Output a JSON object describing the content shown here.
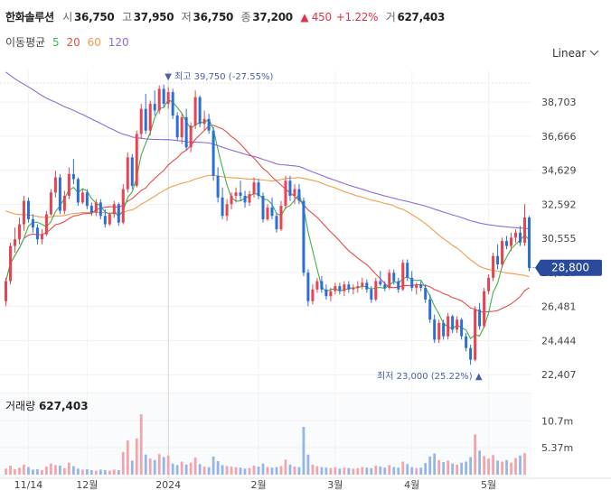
{
  "header": {
    "name": "한화솔루션",
    "open_label": "시",
    "open": "36,750",
    "high_label": "고",
    "high": "37,950",
    "low_label": "저",
    "low": "36,750",
    "close_label": "종",
    "close": "37,200",
    "change": "▲ 450",
    "change_pct": "+1.22%",
    "volume_label": "거",
    "volume": "627,403"
  },
  "moving_average": {
    "label": "이동평균",
    "items": [
      {
        "period": "5",
        "color": "#3cb44b"
      },
      {
        "period": "20",
        "color": "#e84a4a"
      },
      {
        "period": "60",
        "color": "#f39c4a"
      },
      {
        "period": "120",
        "color": "#8e6bdf"
      }
    ]
  },
  "scale_selector": {
    "value": "Linear"
  },
  "volume_panel": {
    "label": "거래량",
    "value": "627,403"
  },
  "colors": {
    "up": "#e8434f",
    "down": "#2a6fd6",
    "current": "#2a4b9b"
  },
  "chart_data": {
    "type": "candlestick",
    "y_ticks": [
      "38,703",
      "36,666",
      "34,629",
      "32,592",
      "30,555",
      "28,518",
      "26,481",
      "24,444",
      "22,407"
    ],
    "y_tick_values": [
      38703,
      36666,
      34629,
      32592,
      30555,
      28518,
      26481,
      24444,
      22407
    ],
    "x_ticks": [
      "11/14",
      "12월",
      "2024",
      "2월",
      "3월",
      "4월",
      "5월"
    ],
    "x_tick_index": [
      5,
      18,
      36,
      56,
      73,
      90,
      107
    ],
    "ylim": [
      21500,
      40600
    ],
    "current_price": {
      "value": 28800,
      "label": "28,800"
    },
    "max_marker": {
      "index": 36,
      "value": 39750,
      "label": "▼ 최고 39,750 (-27.55%)"
    },
    "min_marker": {
      "index": 105,
      "value": 23000,
      "label": "최저 23,000 (25.22%) ▲"
    },
    "volume_ticks": [
      "10.7m",
      "5.37m"
    ],
    "volume_tick_values": [
      10.7,
      5.37
    ],
    "volume_max": 14,
    "ohlc": [
      [
        26800,
        28200,
        26500,
        28000
      ],
      [
        28000,
        30300,
        27800,
        30100
      ],
      [
        30100,
        31200,
        29700,
        30500
      ],
      [
        30500,
        31800,
        30200,
        31400
      ],
      [
        31400,
        33100,
        31000,
        32800
      ],
      [
        32800,
        33000,
        31500,
        31700
      ],
      [
        31700,
        32000,
        30900,
        31200
      ],
      [
        31200,
        31400,
        30200,
        30500
      ],
      [
        30500,
        31100,
        30200,
        30800
      ],
      [
        30800,
        32200,
        30700,
        32000
      ],
      [
        32000,
        33500,
        31900,
        33300
      ],
      [
        33300,
        34600,
        33000,
        34200
      ],
      [
        34200,
        34400,
        32000,
        32200
      ],
      [
        32200,
        33400,
        32000,
        33100
      ],
      [
        33100,
        34800,
        32900,
        34400
      ],
      [
        34400,
        35300,
        33800,
        34100
      ],
      [
        34100,
        34200,
        32500,
        32700
      ],
      [
        32700,
        33500,
        32600,
        33300
      ],
      [
        33300,
        33500,
        32300,
        32500
      ],
      [
        32500,
        32700,
        31900,
        32100
      ],
      [
        32100,
        32900,
        31900,
        32700
      ],
      [
        32700,
        32900,
        31700,
        31900
      ],
      [
        31900,
        32300,
        31200,
        31400
      ],
      [
        31400,
        32100,
        31300,
        32000
      ],
      [
        32000,
        32800,
        31800,
        32600
      ],
      [
        32600,
        32700,
        31300,
        31500
      ],
      [
        31500,
        33800,
        31400,
        33500
      ],
      [
        33500,
        35700,
        33300,
        35400
      ],
      [
        35400,
        35600,
        33500,
        33700
      ],
      [
        33700,
        37000,
        33600,
        36800
      ],
      [
        36800,
        38600,
        36500,
        38300
      ],
      [
        38300,
        39200,
        36800,
        37000
      ],
      [
        37000,
        38800,
        36700,
        38600
      ],
      [
        38600,
        39400,
        37900,
        38200
      ],
      [
        38200,
        39700,
        38000,
        39500
      ],
      [
        39500,
        39750,
        38400,
        38600
      ],
      [
        38600,
        39600,
        38300,
        39300
      ],
      [
        39300,
        39500,
        37700,
        37900
      ],
      [
        37900,
        38100,
        36400,
        36600
      ],
      [
        36600,
        38000,
        36200,
        37800
      ],
      [
        37800,
        38300,
        35800,
        36000
      ],
      [
        36000,
        37500,
        35700,
        37300
      ],
      [
        37300,
        39400,
        37100,
        39000
      ],
      [
        39000,
        39100,
        37200,
        37400
      ],
      [
        37400,
        38200,
        37000,
        37700
      ],
      [
        37700,
        38000,
        36800,
        37000
      ],
      [
        37000,
        37200,
        34000,
        34300
      ],
      [
        34300,
        34800,
        32700,
        33000
      ],
      [
        33000,
        33600,
        31700,
        31900
      ],
      [
        31900,
        32900,
        31600,
        32600
      ],
      [
        32600,
        33300,
        32300,
        33100
      ],
      [
        33100,
        33600,
        32700,
        33300
      ],
      [
        33300,
        34000,
        32800,
        33100
      ],
      [
        33100,
        33400,
        32400,
        32700
      ],
      [
        32700,
        33400,
        32500,
        33200
      ],
      [
        33200,
        34200,
        33000,
        33900
      ],
      [
        33900,
        34100,
        32900,
        33100
      ],
      [
        33100,
        33300,
        31500,
        31700
      ],
      [
        31700,
        32600,
        31600,
        32400
      ],
      [
        32400,
        33000,
        31700,
        31900
      ],
      [
        31900,
        32100,
        30900,
        31100
      ],
      [
        31100,
        32800,
        31000,
        32500
      ],
      [
        32500,
        34300,
        32300,
        34000
      ],
      [
        34000,
        34300,
        32800,
        33100
      ],
      [
        33100,
        33800,
        32600,
        33500
      ],
      [
        33500,
        33800,
        32600,
        32800
      ],
      [
        32800,
        33000,
        28300,
        28500
      ],
      [
        28500,
        28700,
        26500,
        26800
      ],
      [
        26800,
        27800,
        26600,
        27500
      ],
      [
        27500,
        28200,
        27300,
        28000
      ],
      [
        28000,
        28300,
        27300,
        27500
      ],
      [
        27500,
        27800,
        26900,
        27100
      ],
      [
        27100,
        27600,
        26800,
        27400
      ],
      [
        27400,
        27900,
        27200,
        27700
      ],
      [
        27700,
        27900,
        27200,
        27400
      ],
      [
        27400,
        28000,
        27100,
        27800
      ],
      [
        27800,
        28000,
        27300,
        27500
      ],
      [
        27500,
        27800,
        27200,
        27600
      ],
      [
        27600,
        28000,
        27300,
        27700
      ],
      [
        27700,
        28200,
        27500,
        27900
      ],
      [
        27900,
        28100,
        27300,
        27500
      ],
      [
        27500,
        27700,
        26700,
        26900
      ],
      [
        26900,
        28200,
        26800,
        28000
      ],
      [
        28000,
        28600,
        27700,
        27800
      ],
      [
        27800,
        28000,
        27400,
        27600
      ],
      [
        27600,
        28700,
        27500,
        28500
      ],
      [
        28500,
        28700,
        27800,
        28000
      ],
      [
        28000,
        28200,
        27300,
        27500
      ],
      [
        27500,
        29300,
        27400,
        29100
      ],
      [
        29100,
        29300,
        28000,
        28200
      ],
      [
        28200,
        28600,
        27400,
        27600
      ],
      [
        27600,
        27900,
        27200,
        27800
      ],
      [
        27800,
        28000,
        27400,
        27600
      ],
      [
        27600,
        27800,
        26700,
        26900
      ],
      [
        26900,
        27200,
        25500,
        25700
      ],
      [
        25700,
        26000,
        24300,
        24500
      ],
      [
        24500,
        25700,
        24300,
        25500
      ],
      [
        25500,
        25700,
        24500,
        24700
      ],
      [
        24700,
        26100,
        24500,
        25900
      ],
      [
        25900,
        26000,
        24900,
        25100
      ],
      [
        25100,
        25900,
        24900,
        25700
      ],
      [
        25700,
        25800,
        24500,
        24700
      ],
      [
        24700,
        24900,
        23800,
        24000
      ],
      [
        24000,
        24200,
        23000,
        23300
      ],
      [
        23300,
        26500,
        23200,
        26300
      ],
      [
        26300,
        26700,
        25100,
        25300
      ],
      [
        25300,
        27600,
        25200,
        27400
      ],
      [
        27400,
        28400,
        27200,
        28200
      ],
      [
        28200,
        29700,
        28000,
        29500
      ],
      [
        29500,
        30200,
        28700,
        29000
      ],
      [
        29000,
        30600,
        28800,
        30400
      ],
      [
        30400,
        30700,
        29900,
        30100
      ],
      [
        30100,
        30900,
        29800,
        30600
      ],
      [
        30600,
        31100,
        30300,
        30900
      ],
      [
        30900,
        31300,
        30100,
        30300
      ],
      [
        30300,
        32600,
        30100,
        31800
      ],
      [
        31800,
        31900,
        28600,
        28800
      ]
    ],
    "volume": [
      1.2,
      1.8,
      1.1,
      1.4,
      2.0,
      1.5,
      1.0,
      1.1,
      0.9,
      1.6,
      2.2,
      1.9,
      1.8,
      1.3,
      2.4,
      1.7,
      1.2,
      1.0,
      1.1,
      0.9,
      0.8,
      1.0,
      0.9,
      0.8,
      1.0,
      0.9,
      4.5,
      6.8,
      2.8,
      7.2,
      12.0,
      4.0,
      3.2,
      2.9,
      4.1,
      3.5,
      3.8,
      2.2,
      1.9,
      2.6,
      2.0,
      2.4,
      3.4,
      2.1,
      1.6,
      1.5,
      3.6,
      2.7,
      1.9,
      1.7,
      1.6,
      1.5,
      1.4,
      1.2,
      1.3,
      1.8,
      1.6,
      2.2,
      1.5,
      1.4,
      1.5,
      1.7,
      3.0,
      2.0,
      1.6,
      1.5,
      9.5,
      4.0,
      2.0,
      1.7,
      1.5,
      1.4,
      1.3,
      1.5,
      1.2,
      1.4,
      1.3,
      1.2,
      1.3,
      1.5,
      1.4,
      1.3,
      1.8,
      1.6,
      1.4,
      1.9,
      1.5,
      1.4,
      2.6,
      2.1,
      1.5,
      1.3,
      1.4,
      2.3,
      3.6,
      4.2,
      2.9,
      2.5,
      2.8,
      2.2,
      2.0,
      2.4,
      2.6,
      3.5,
      8.0,
      4.8,
      3.7,
      3.2,
      3.9,
      2.8,
      2.6,
      2.9,
      2.4,
      3.3,
      3.8,
      4.3
    ]
  }
}
